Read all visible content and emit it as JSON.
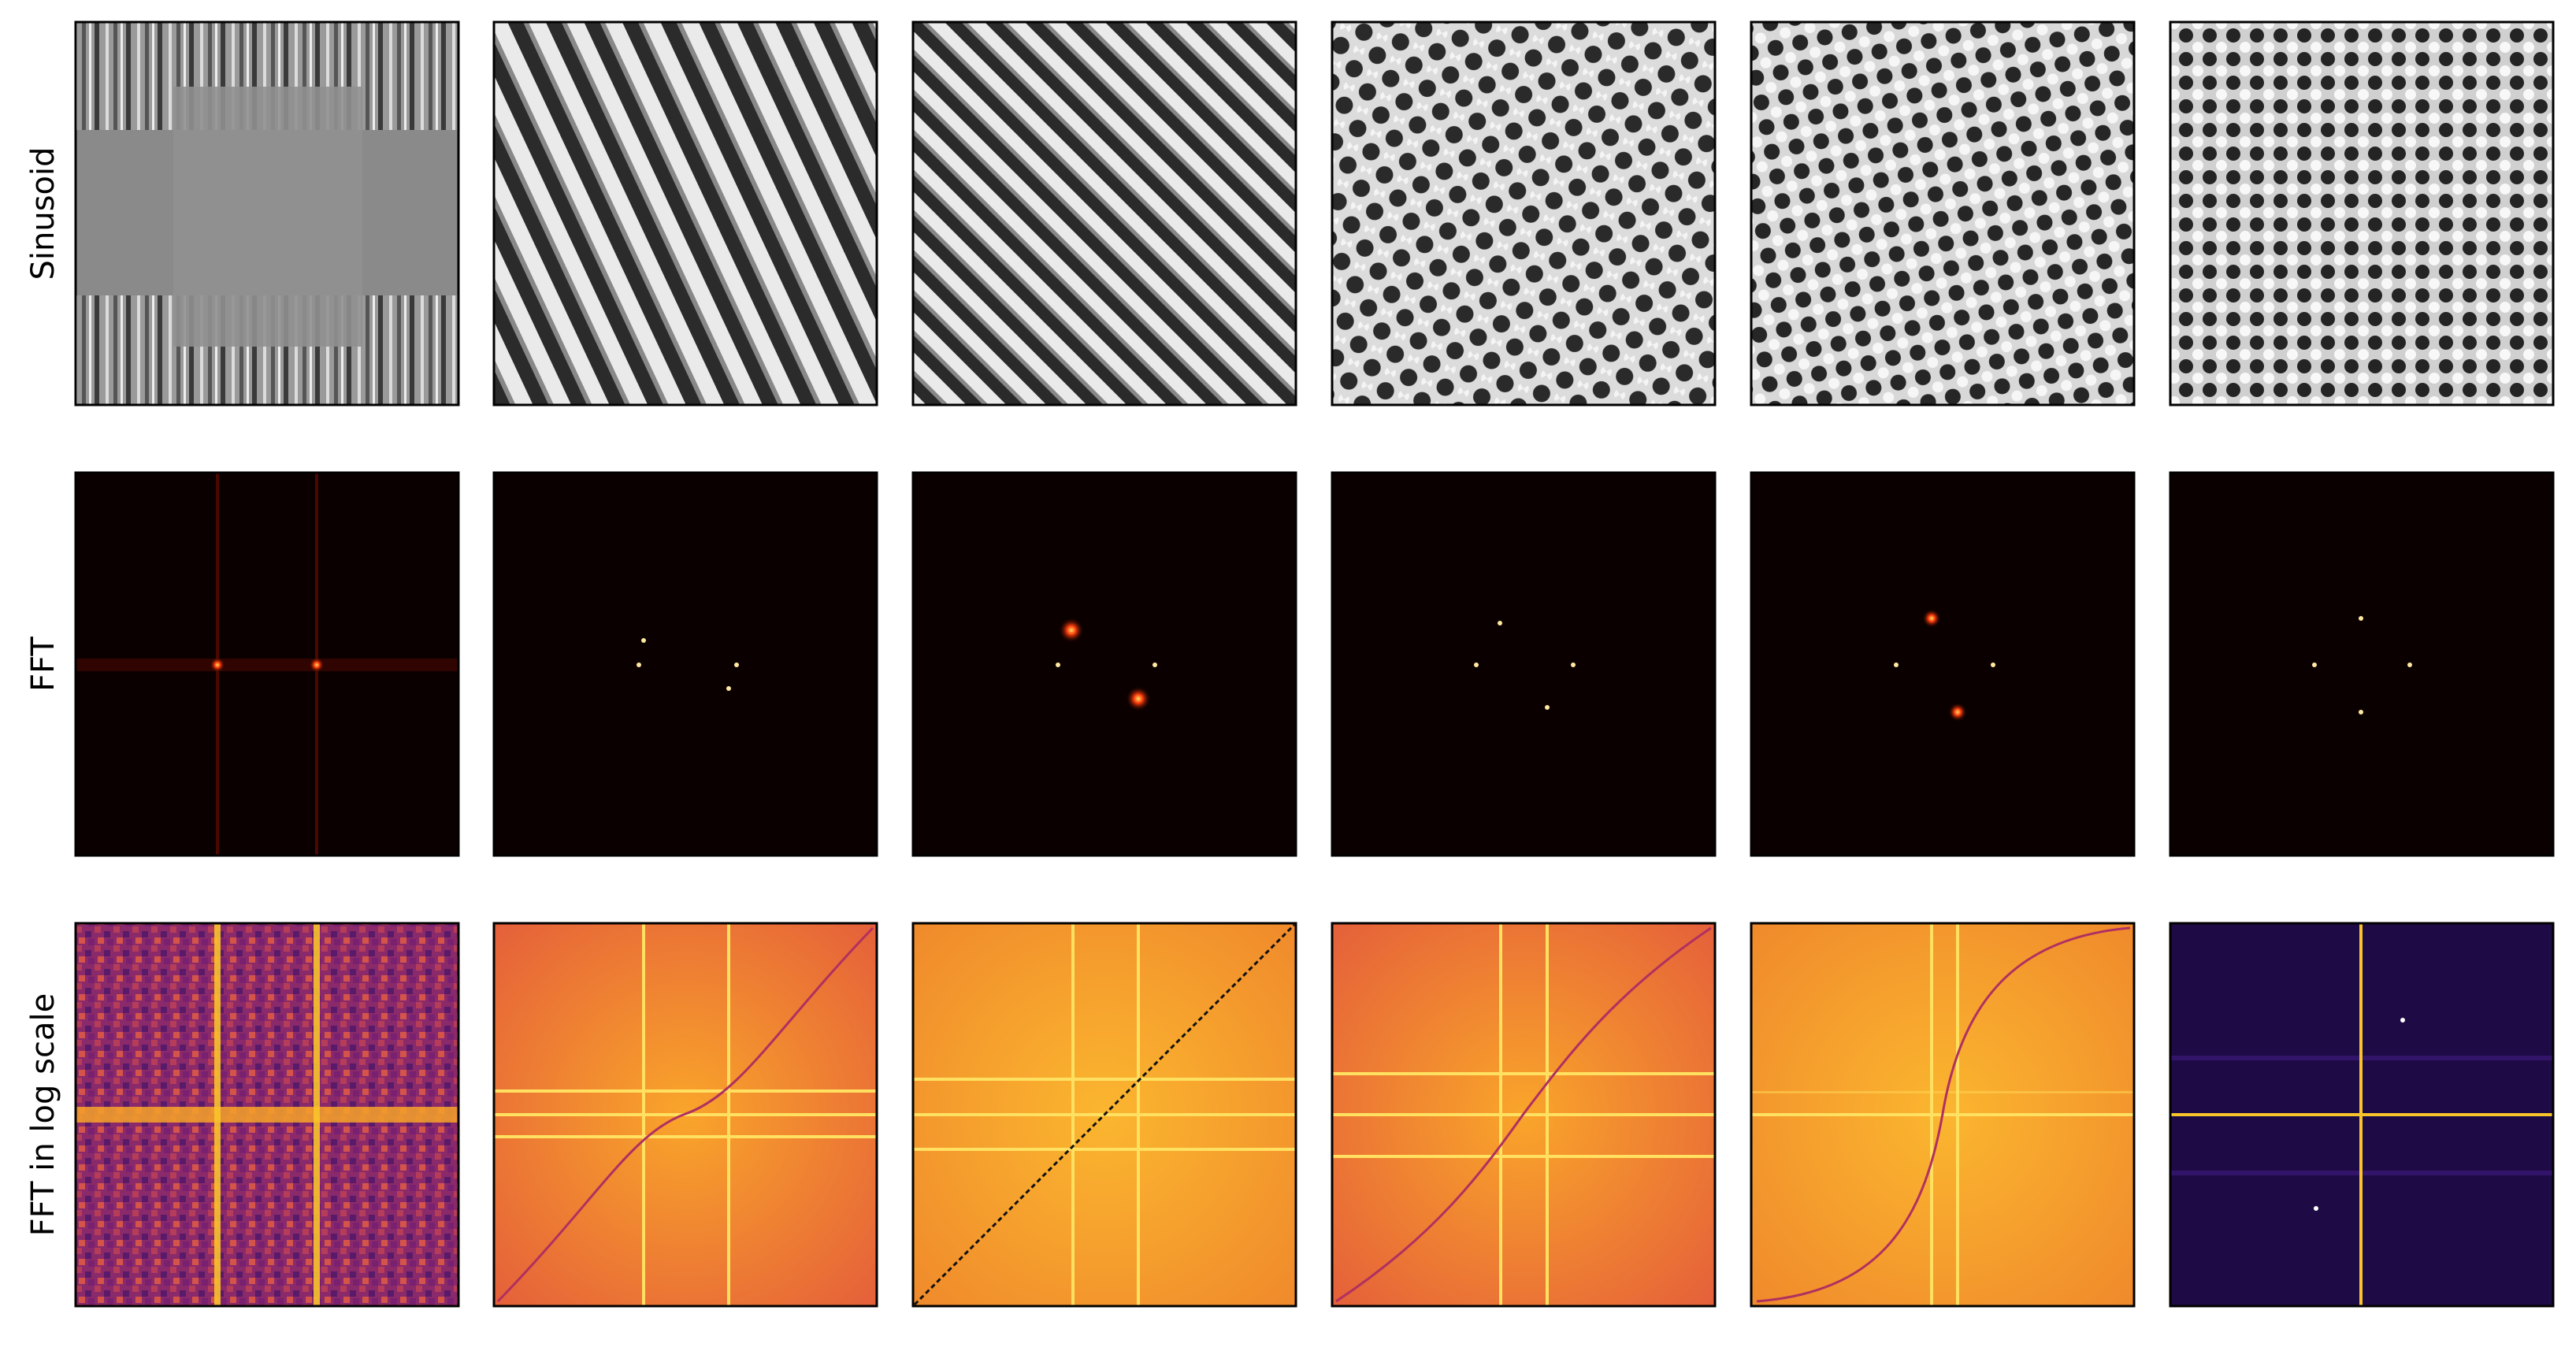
{
  "figure": {
    "rows": [
      {
        "id": "sinusoid",
        "label": "Sinusoid",
        "style": "grayscale pattern"
      },
      {
        "id": "fft",
        "label": "FFT",
        "style": "black-red-yellow colormap, dark background"
      },
      {
        "id": "fft_log",
        "label": "FFT in log scale",
        "style": "inferno-like colormap"
      }
    ],
    "column_count": 6,
    "colors": {
      "background": "#ffffff",
      "frame": "#000000",
      "fft_background": "#0b0000",
      "log_dark": "#2a0a5e",
      "log_bright": "#f9c32b"
    },
    "panels": {
      "sinusoid": [
        {
          "pattern": "composite vertical stripes with blocky regions"
        },
        {
          "pattern": "diagonal stripes, steep"
        },
        {
          "pattern": "diagonal stripes, 45 degrees"
        },
        {
          "pattern": "checker-like grid, tilted"
        },
        {
          "pattern": "checker-like grid, slightly tilted"
        },
        {
          "pattern": "checker grid, axis aligned"
        }
      ],
      "fft": [
        {
          "peaks": "two bright vertical lines with horizontal band"
        },
        {
          "peaks": "four faint dots"
        },
        {
          "peaks": "two bright red spots plus two dots"
        },
        {
          "peaks": "four dots"
        },
        {
          "peaks": "two red spots plus two dots"
        },
        {
          "peaks": "four dots"
        }
      ],
      "fft_log": [
        {
          "appearance": "noisy purple-orange texture"
        },
        {
          "appearance": "orange with yellow cross lines, S curve"
        },
        {
          "appearance": "orange with black diagonal line"
        },
        {
          "appearance": "orange with yellow cross lines, S curve"
        },
        {
          "appearance": "orange with steep S curve"
        },
        {
          "appearance": "dark purple with yellow cross"
        }
      ]
    }
  }
}
